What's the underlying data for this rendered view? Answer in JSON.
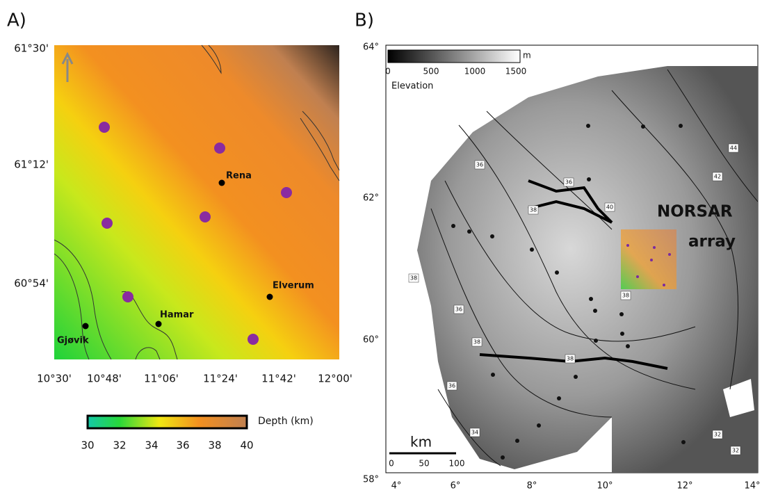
{
  "panels": [
    {
      "label": "A)",
      "yticks": [
        "61°30'",
        "61°12'",
        "60°54'"
      ],
      "xticks": [
        "10°30'",
        "10°48'",
        "11°06'",
        "11°24'",
        "11°42'",
        "12°00'"
      ],
      "places": [
        "Rena",
        "Elverum",
        "Hamar",
        "Gjøvik"
      ],
      "colorbar": {
        "ticks": [
          30,
          32,
          34,
          36,
          38,
          40
        ],
        "label": "Depth (km)"
      }
    },
    {
      "label": "B)",
      "yticks": [
        "64°",
        "62°",
        "60°",
        "58°"
      ],
      "xticks": [
        "4°",
        "6°",
        "8°",
        "10°",
        "12°",
        "14°"
      ],
      "elevation_bar": {
        "ticks": [
          0,
          500,
          1000,
          1500
        ],
        "unit": "m",
        "label": "Elevation"
      },
      "scale_bar": {
        "unit": "km",
        "ticks": [
          0,
          50,
          100
        ]
      },
      "annotation": [
        "NORSAR",
        "array"
      ],
      "contour_labels": [
        36,
        36,
        38,
        40,
        42,
        44,
        38,
        36,
        38,
        38,
        38,
        36,
        34,
        32,
        32
      ]
    }
  ]
}
